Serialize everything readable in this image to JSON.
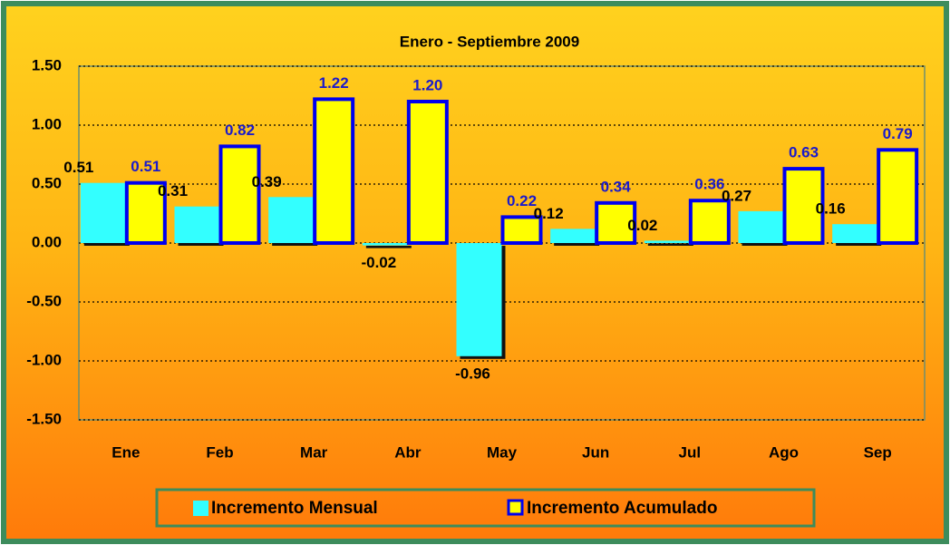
{
  "chart_data": {
    "type": "bar",
    "title": "Enero - Septiembre 2009",
    "categories": [
      "Ene",
      "Feb",
      "Mar",
      "Abr",
      "May",
      "Jun",
      "Jul",
      "Ago",
      "Sep"
    ],
    "series": [
      {
        "name": "Incremento Mensual",
        "color": "#33ffff",
        "label_color": "#000000",
        "values": [
          0.51,
          0.31,
          0.39,
          -0.02,
          -0.96,
          0.12,
          0.02,
          0.27,
          0.16
        ],
        "value_labels": [
          "0.51",
          "0.31",
          "0.39",
          "-0.02",
          "-0.96",
          "0.12",
          "0.02",
          "0.27",
          "0.16"
        ]
      },
      {
        "name": "Incremento Acumulado",
        "color": "#ffff00",
        "border_color": "#0000ee",
        "label_color": "#1a1acc",
        "values": [
          0.51,
          0.82,
          1.22,
          1.2,
          0.22,
          0.34,
          0.36,
          0.63,
          0.79
        ],
        "value_labels": [
          "0.51",
          "0.82",
          "1.22",
          "1.20",
          "0.22",
          "0.34",
          "0.36",
          "0.63",
          "0.79"
        ]
      }
    ],
    "ylim": [
      -1.5,
      1.5
    ],
    "yticks": [
      {
        "value": 1.5,
        "label": "1.50"
      },
      {
        "value": 1.0,
        "label": "1.00"
      },
      {
        "value": 0.5,
        "label": "0.50"
      },
      {
        "value": 0,
        "label": "0.00"
      },
      {
        "value": -0.5,
        "label": "-0.50"
      },
      {
        "value": -1.0,
        "label": "-1.00"
      },
      {
        "value": -1.5,
        "label": "-1.50"
      }
    ],
    "grid": true,
    "legend": "bottom"
  }
}
